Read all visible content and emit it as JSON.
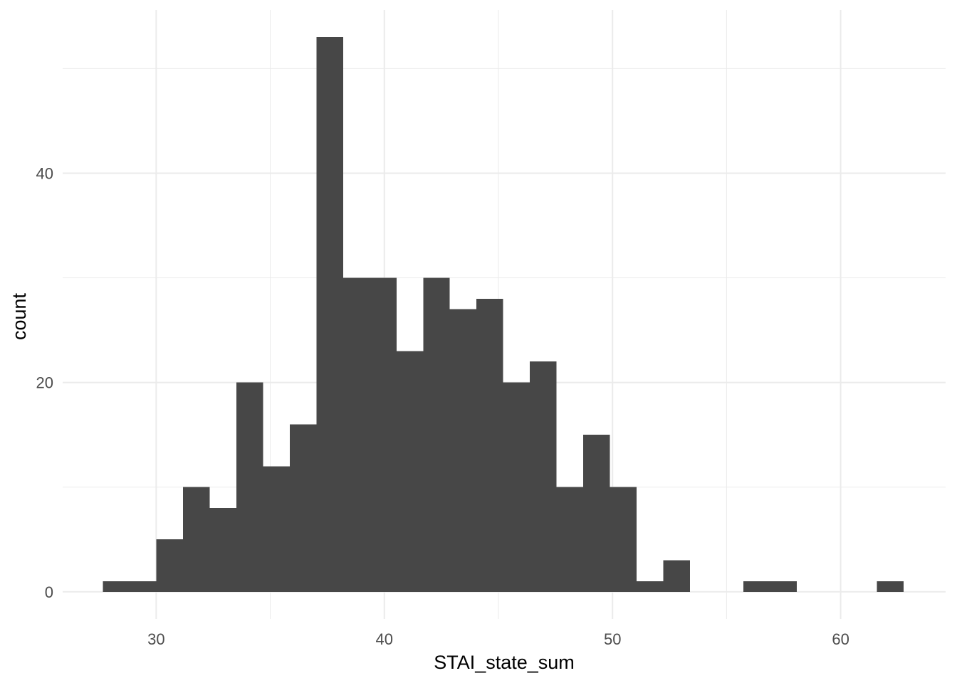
{
  "chart_data": {
    "type": "bar",
    "subtype": "histogram",
    "xlabel": "STAI_state_sum",
    "ylabel": "count",
    "title": "",
    "bar_color": "#474747",
    "grid_color": "#ebebeb",
    "background": "#ffffff",
    "grid": true,
    "legend": "none",
    "xlim": [
      25.9,
      64.6
    ],
    "ylim": [
      -2.6,
      55.6
    ],
    "x_major_ticks": [
      30,
      40,
      50,
      60
    ],
    "x_minor_ticks": [
      35,
      45,
      55
    ],
    "y_major_ticks": [
      0,
      20,
      40
    ],
    "y_minor_ticks": [
      10,
      30,
      50
    ],
    "x_tick_labels": [
      "30",
      "40",
      "50",
      "60"
    ],
    "y_tick_labels": [
      "0",
      "20",
      "40"
    ],
    "bin_width": 1.17,
    "bins": [
      {
        "x0": 27.66,
        "x1": 28.83,
        "count": 1
      },
      {
        "x0": 28.83,
        "x1": 30.0,
        "count": 1
      },
      {
        "x0": 30.0,
        "x1": 31.17,
        "count": 5
      },
      {
        "x0": 31.17,
        "x1": 32.34,
        "count": 10
      },
      {
        "x0": 32.34,
        "x1": 33.51,
        "count": 8
      },
      {
        "x0": 33.51,
        "x1": 34.68,
        "count": 20
      },
      {
        "x0": 34.68,
        "x1": 35.85,
        "count": 12
      },
      {
        "x0": 35.85,
        "x1": 37.02,
        "count": 16
      },
      {
        "x0": 37.02,
        "x1": 38.19,
        "count": 53
      },
      {
        "x0": 38.19,
        "x1": 39.36,
        "count": 30
      },
      {
        "x0": 39.36,
        "x1": 40.53,
        "count": 30
      },
      {
        "x0": 40.53,
        "x1": 41.7,
        "count": 23
      },
      {
        "x0": 41.7,
        "x1": 42.87,
        "count": 30
      },
      {
        "x0": 42.87,
        "x1": 44.04,
        "count": 27
      },
      {
        "x0": 44.04,
        "x1": 45.21,
        "count": 28
      },
      {
        "x0": 45.21,
        "x1": 46.38,
        "count": 20
      },
      {
        "x0": 46.38,
        "x1": 47.55,
        "count": 22
      },
      {
        "x0": 47.55,
        "x1": 48.72,
        "count": 10
      },
      {
        "x0": 48.72,
        "x1": 49.89,
        "count": 15
      },
      {
        "x0": 49.89,
        "x1": 51.06,
        "count": 10
      },
      {
        "x0": 51.06,
        "x1": 52.23,
        "count": 1
      },
      {
        "x0": 52.23,
        "x1": 53.4,
        "count": 3
      },
      {
        "x0": 53.4,
        "x1": 54.57,
        "count": 0
      },
      {
        "x0": 54.57,
        "x1": 55.74,
        "count": 0
      },
      {
        "x0": 55.74,
        "x1": 56.91,
        "count": 1
      },
      {
        "x0": 56.91,
        "x1": 58.08,
        "count": 1
      },
      {
        "x0": 58.08,
        "x1": 59.25,
        "count": 0
      },
      {
        "x0": 59.25,
        "x1": 60.42,
        "count": 0
      },
      {
        "x0": 60.42,
        "x1": 61.59,
        "count": 0
      },
      {
        "x0": 61.59,
        "x1": 62.76,
        "count": 1
      }
    ]
  }
}
